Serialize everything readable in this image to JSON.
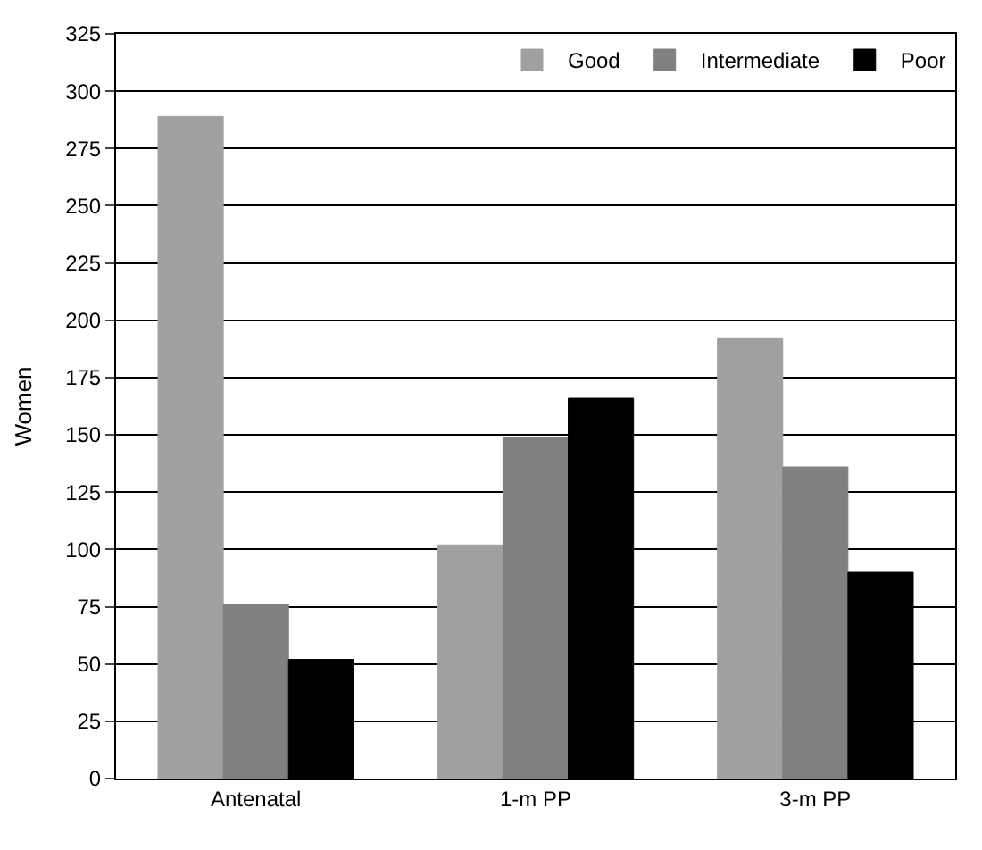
{
  "chart_data": {
    "type": "bar",
    "ylabel": "Women",
    "categories": [
      "Antenatal",
      "1-m PP",
      "3-m PP"
    ],
    "series": [
      {
        "name": "Good",
        "color": "#a0a0a0",
        "values": [
          289,
          102,
          192
        ]
      },
      {
        "name": "Intermediate",
        "color": "#808080",
        "values": [
          76,
          149,
          136
        ]
      },
      {
        "name": "Poor",
        "color": "#000000",
        "values": [
          52,
          166,
          90
        ]
      }
    ],
    "ylim": [
      0,
      325
    ],
    "yticks": [
      0,
      25,
      50,
      75,
      100,
      125,
      150,
      175,
      200,
      225,
      250,
      275,
      300,
      325
    ],
    "grid": "y",
    "legend": "top right"
  }
}
